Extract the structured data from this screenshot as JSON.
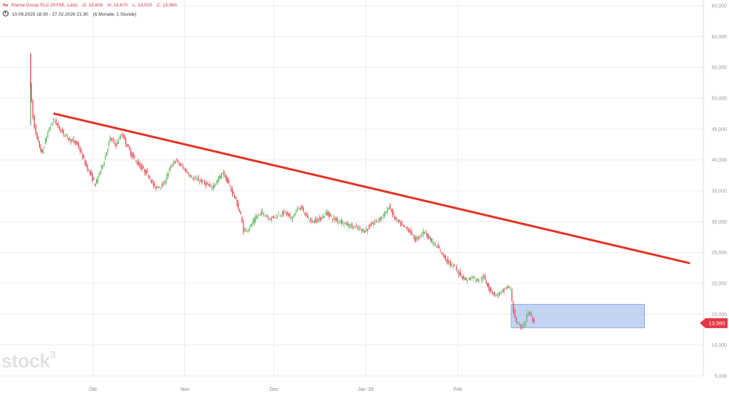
{
  "header": {
    "symbol_badge": "№",
    "instrument": "Klarna Group PLC (NYSE, Last)",
    "open_label": "O:",
    "open": "13,605",
    "high_label": "H:",
    "high": "13,670",
    "low_label": "L:",
    "low": "13,520",
    "close_label": "C:",
    "close": "13,560",
    "date_range": "10.09.2025 18:30 - 27.02.2026 21:30",
    "period": "(6 Monate, 1 Stunde)"
  },
  "watermark": {
    "text": "stock",
    "sup": "3"
  },
  "colors": {
    "up": "#4caf50",
    "down": "#e53945",
    "trendline": "#e53225",
    "box_fill": "#aec6ec",
    "box_stroke": "#8eaede",
    "grid": "#ececec",
    "price_tag": "#e53945"
  },
  "chart_data": {
    "type": "candlestick",
    "title": "Klarna Group PLC (NYSE, Last)",
    "interval": "1 Stunde",
    "ylim": [
      5000,
      65000
    ],
    "y_ticks": [
      "5,000",
      "10,000",
      "15,000",
      "20,000",
      "25,000",
      "30,000",
      "35,000",
      "40,000",
      "45,000",
      "50,000",
      "55,000",
      "60,000",
      "65,000"
    ],
    "y_tick_values": [
      5000,
      10000,
      15000,
      20000,
      25000,
      30000,
      35000,
      40000,
      45000,
      50000,
      55000,
      60000,
      65000
    ],
    "x_ticks": [
      "Okt",
      "Nov",
      "Dez",
      "Jan '26",
      "Feb"
    ],
    "x_tick_dates": [
      "2025-10-01",
      "2025-11-01",
      "2025-12-01",
      "2026-01-01",
      "2026-02-01"
    ],
    "grid": true,
    "last_price": 13560,
    "last_price_label": "13,560",
    "price_path": [
      [
        "2025-09-10",
        46000
      ],
      [
        "2025-09-10",
        57000
      ],
      [
        "2025-09-10",
        52000
      ],
      [
        "2025-09-11",
        47000
      ],
      [
        "2025-09-12",
        44000
      ],
      [
        "2025-09-14",
        41000
      ],
      [
        "2025-09-16",
        44500
      ],
      [
        "2025-09-18",
        46500
      ],
      [
        "2025-09-20",
        45000
      ],
      [
        "2025-09-23",
        43500
      ],
      [
        "2025-09-26",
        42500
      ],
      [
        "2025-09-29",
        39000
      ],
      [
        "2025-10-01",
        37000
      ],
      [
        "2025-10-02",
        36000
      ],
      [
        "2025-10-05",
        40000
      ],
      [
        "2025-10-07",
        43500
      ],
      [
        "2025-10-09",
        42500
      ],
      [
        "2025-10-11",
        44200
      ],
      [
        "2025-10-14",
        41000
      ],
      [
        "2025-10-17",
        39000
      ],
      [
        "2025-10-20",
        37500
      ],
      [
        "2025-10-22",
        35500
      ],
      [
        "2025-10-25",
        36000
      ],
      [
        "2025-10-27",
        38500
      ],
      [
        "2025-10-29",
        40000
      ],
      [
        "2025-11-01",
        38500
      ],
      [
        "2025-11-04",
        37000
      ],
      [
        "2025-11-07",
        36500
      ],
      [
        "2025-11-10",
        35500
      ],
      [
        "2025-11-12",
        36500
      ],
      [
        "2025-11-14",
        38000
      ],
      [
        "2025-11-16",
        36000
      ],
      [
        "2025-11-18",
        34000
      ],
      [
        "2025-11-20",
        31000
      ],
      [
        "2025-11-21",
        28500
      ],
      [
        "2025-11-23",
        29000
      ],
      [
        "2025-11-25",
        30500
      ],
      [
        "2025-11-27",
        31500
      ],
      [
        "2025-11-30",
        30500
      ],
      [
        "2025-12-02",
        31000
      ],
      [
        "2025-12-05",
        31500
      ],
      [
        "2025-12-07",
        30500
      ],
      [
        "2025-12-10",
        32500
      ],
      [
        "2025-12-12",
        31000
      ],
      [
        "2025-12-14",
        30000
      ],
      [
        "2025-12-17",
        30500
      ],
      [
        "2025-12-19",
        31500
      ],
      [
        "2025-12-21",
        30500
      ],
      [
        "2025-12-24",
        30000
      ],
      [
        "2025-12-26",
        29500
      ],
      [
        "2025-12-29",
        29000
      ],
      [
        "2026-01-01",
        28500
      ],
      [
        "2026-01-03",
        29500
      ],
      [
        "2026-01-06",
        30500
      ],
      [
        "2026-01-08",
        31500
      ],
      [
        "2026-01-09",
        32500
      ],
      [
        "2026-01-11",
        30500
      ],
      [
        "2026-01-13",
        29500
      ],
      [
        "2026-01-16",
        28500
      ],
      [
        "2026-01-18",
        27000
      ],
      [
        "2026-01-21",
        28500
      ],
      [
        "2026-01-23",
        27000
      ],
      [
        "2026-01-26",
        25500
      ],
      [
        "2026-01-28",
        24000
      ],
      [
        "2026-01-31",
        22500
      ],
      [
        "2026-02-02",
        21500
      ],
      [
        "2026-02-04",
        20500
      ],
      [
        "2026-02-06",
        21000
      ],
      [
        "2026-02-08",
        20500
      ],
      [
        "2026-02-10",
        21000
      ],
      [
        "2026-02-12",
        19000
      ],
      [
        "2026-02-14",
        18000
      ],
      [
        "2026-02-16",
        18500
      ],
      [
        "2026-02-18",
        19500
      ],
      [
        "2026-02-19",
        19000
      ],
      [
        "2026-02-20",
        15500
      ],
      [
        "2026-02-21",
        13500
      ],
      [
        "2026-02-22",
        13000
      ],
      [
        "2026-02-23",
        13200
      ],
      [
        "2026-02-24",
        13800
      ],
      [
        "2026-02-25",
        15500
      ],
      [
        "2026-02-26",
        14500
      ],
      [
        "2026-02-27",
        13560
      ]
    ],
    "trendline": {
      "start": [
        "2025-09-18",
        47500
      ],
      "end": [
        "2026-04-20",
        23300
      ]
    },
    "highlight_box": {
      "x0": "2026-02-19",
      "x1": "2026-04-05",
      "y0": 12800,
      "y1": 16600
    }
  }
}
